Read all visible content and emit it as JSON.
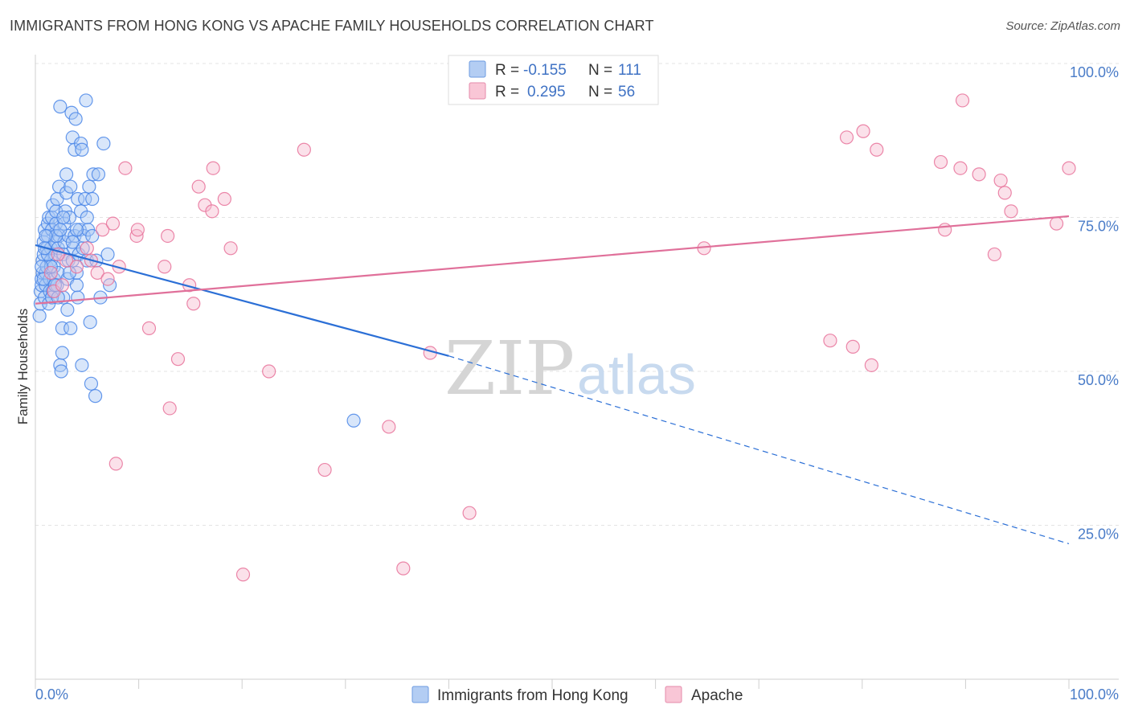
{
  "title": "IMMIGRANTS FROM HONG KONG VS APACHE FAMILY HOUSEHOLDS CORRELATION CHART",
  "source": "Source: ZipAtlas.com",
  "watermark": {
    "zip": "ZIP",
    "atlas": "atlas"
  },
  "colors": {
    "blue": "#4a86e8",
    "blue_fill": "#a9c8f5",
    "blue_line": "#2b6fd6",
    "pink": "#e8729a",
    "pink_fill": "#f7bcd0",
    "pink_line": "#e0709a",
    "grid": "#e3e3e3",
    "tick": "#4a7cc8"
  },
  "legend": {
    "rows": [
      {
        "r_label": "R =",
        "r_value": "-0.155",
        "n_label": "N =",
        "n_value": "111"
      },
      {
        "r_label": "R =",
        "r_value": "0.295",
        "n_label": "N =",
        "n_value": "56"
      }
    ]
  },
  "chart_data": {
    "type": "scatter",
    "ylabel": "Family Households",
    "xlabel": "",
    "xlim": [
      0,
      100
    ],
    "ylim": [
      0,
      100
    ],
    "x_tick_labels": [
      "0.0%",
      "100.0%"
    ],
    "y_ticks": [
      {
        "value": 25,
        "label": "25.0%"
      },
      {
        "value": 50,
        "label": "50.0%"
      },
      {
        "value": 75,
        "label": "75.0%"
      },
      {
        "value": 100,
        "label": "100.0%"
      }
    ],
    "grid": "horizontal dashed",
    "legend_position": "top-center",
    "series": [
      {
        "name": "Immigrants from Hong Kong",
        "color": "blue",
        "trend": {
          "x0": 0,
          "y0": 70.5,
          "x1": 40,
          "y1": 52.5,
          "dashed_to_x": 100,
          "dashed_to_y": 22
        },
        "points": [
          [
            0.4,
            59
          ],
          [
            0.5,
            61
          ],
          [
            0.5,
            63
          ],
          [
            0.6,
            64
          ],
          [
            0.6,
            65
          ],
          [
            0.7,
            66
          ],
          [
            0.7,
            68
          ],
          [
            0.8,
            69
          ],
          [
            0.8,
            71
          ],
          [
            0.9,
            73
          ],
          [
            0.9,
            62
          ],
          [
            1.0,
            64
          ],
          [
            1.0,
            66
          ],
          [
            1.1,
            67
          ],
          [
            1.1,
            70
          ],
          [
            1.2,
            72
          ],
          [
            1.2,
            74
          ],
          [
            1.3,
            75
          ],
          [
            1.3,
            61
          ],
          [
            1.4,
            63
          ],
          [
            1.4,
            65
          ],
          [
            1.5,
            68
          ],
          [
            1.5,
            70
          ],
          [
            1.6,
            73
          ],
          [
            1.6,
            75
          ],
          [
            1.7,
            77
          ],
          [
            1.7,
            63
          ],
          [
            1.8,
            65
          ],
          [
            1.8,
            67
          ],
          [
            1.9,
            69
          ],
          [
            1.9,
            71
          ],
          [
            2.0,
            74
          ],
          [
            2.0,
            76
          ],
          [
            2.1,
            78
          ],
          [
            2.1,
            64
          ],
          [
            2.2,
            66
          ],
          [
            2.2,
            70
          ],
          [
            2.3,
            72
          ],
          [
            2.3,
            80
          ],
          [
            2.4,
            93
          ],
          [
            2.4,
            51
          ],
          [
            2.5,
            50
          ],
          [
            2.6,
            53
          ],
          [
            2.6,
            57
          ],
          [
            2.7,
            62
          ],
          [
            2.7,
            69
          ],
          [
            2.8,
            71
          ],
          [
            2.8,
            74
          ],
          [
            2.9,
            76
          ],
          [
            3.0,
            79
          ],
          [
            3.0,
            82
          ],
          [
            3.1,
            60
          ],
          [
            3.1,
            65
          ],
          [
            3.2,
            68
          ],
          [
            3.2,
            72
          ],
          [
            3.3,
            75
          ],
          [
            3.4,
            80
          ],
          [
            3.4,
            57
          ],
          [
            3.5,
            92
          ],
          [
            3.6,
            88
          ],
          [
            3.6,
            68
          ],
          [
            3.7,
            70
          ],
          [
            3.8,
            72
          ],
          [
            3.8,
            86
          ],
          [
            3.9,
            91
          ],
          [
            4.0,
            64
          ],
          [
            4.0,
            66
          ],
          [
            4.1,
            78
          ],
          [
            4.1,
            62
          ],
          [
            4.2,
            69
          ],
          [
            4.3,
            73
          ],
          [
            4.4,
            76
          ],
          [
            4.4,
            87
          ],
          [
            4.5,
            51
          ],
          [
            4.5,
            86
          ],
          [
            4.6,
            70
          ],
          [
            4.7,
            72
          ],
          [
            4.8,
            78
          ],
          [
            4.9,
            94
          ],
          [
            5.0,
            75
          ],
          [
            5.0,
            68
          ],
          [
            5.1,
            73
          ],
          [
            5.2,
            80
          ],
          [
            5.3,
            58
          ],
          [
            5.4,
            48
          ],
          [
            5.5,
            72
          ],
          [
            5.5,
            78
          ],
          [
            5.6,
            82
          ],
          [
            5.8,
            46
          ],
          [
            5.9,
            68
          ],
          [
            6.1,
            82
          ],
          [
            6.3,
            62
          ],
          [
            6.6,
            87
          ],
          [
            7.0,
            69
          ],
          [
            7.2,
            64
          ],
          [
            30.8,
            42
          ],
          [
            1.2,
            69
          ],
          [
            2.0,
            72
          ],
          [
            1.5,
            67
          ],
          [
            0.8,
            65
          ],
          [
            1.0,
            72
          ],
          [
            2.4,
            73
          ],
          [
            3.3,
            66
          ],
          [
            1.6,
            62
          ],
          [
            0.6,
            67
          ],
          [
            4.0,
            73
          ],
          [
            1.9,
            64
          ],
          [
            2.7,
            75
          ],
          [
            3.6,
            71
          ],
          [
            0.9,
            70
          ],
          [
            2.2,
            62
          ]
        ]
      },
      {
        "name": "Apache",
        "color": "pink",
        "trend": {
          "x0": 0,
          "y0": 61,
          "x1": 100,
          "y1": 75.2
        },
        "points": [
          [
            1.5,
            66
          ],
          [
            1.8,
            63
          ],
          [
            2.6,
            64
          ],
          [
            3.0,
            68
          ],
          [
            4.0,
            67
          ],
          [
            5.0,
            70
          ],
          [
            5.4,
            68
          ],
          [
            6.0,
            66
          ],
          [
            6.5,
            73
          ],
          [
            7.0,
            65
          ],
          [
            7.5,
            74
          ],
          [
            7.8,
            35
          ],
          [
            8.1,
            67
          ],
          [
            8.7,
            83
          ],
          [
            9.8,
            72
          ],
          [
            11.0,
            57
          ],
          [
            12.5,
            67
          ],
          [
            13.0,
            44
          ],
          [
            13.8,
            52
          ],
          [
            14.9,
            64
          ],
          [
            15.3,
            61
          ],
          [
            15.8,
            80
          ],
          [
            16.4,
            77
          ],
          [
            17.1,
            76
          ],
          [
            17.2,
            83
          ],
          [
            18.9,
            70
          ],
          [
            20.1,
            17
          ],
          [
            22.6,
            50
          ],
          [
            26.0,
            86
          ],
          [
            28.0,
            34
          ],
          [
            34.2,
            41
          ],
          [
            35.6,
            18
          ],
          [
            38.2,
            53
          ],
          [
            42.0,
            27
          ],
          [
            64.7,
            70
          ],
          [
            76.9,
            55
          ],
          [
            78.5,
            88
          ],
          [
            79.1,
            54
          ],
          [
            80.1,
            89
          ],
          [
            80.9,
            51
          ],
          [
            81.4,
            86
          ],
          [
            87.6,
            84
          ],
          [
            88.0,
            73
          ],
          [
            89.5,
            83
          ],
          [
            89.7,
            94
          ],
          [
            91.3,
            82
          ],
          [
            92.8,
            69
          ],
          [
            93.4,
            81
          ],
          [
            93.8,
            79
          ],
          [
            94.4,
            76
          ],
          [
            98.8,
            74
          ],
          [
            100.0,
            83
          ],
          [
            9.9,
            73
          ],
          [
            12.8,
            72
          ],
          [
            18.3,
            78
          ],
          [
            2.2,
            69
          ]
        ]
      }
    ]
  }
}
